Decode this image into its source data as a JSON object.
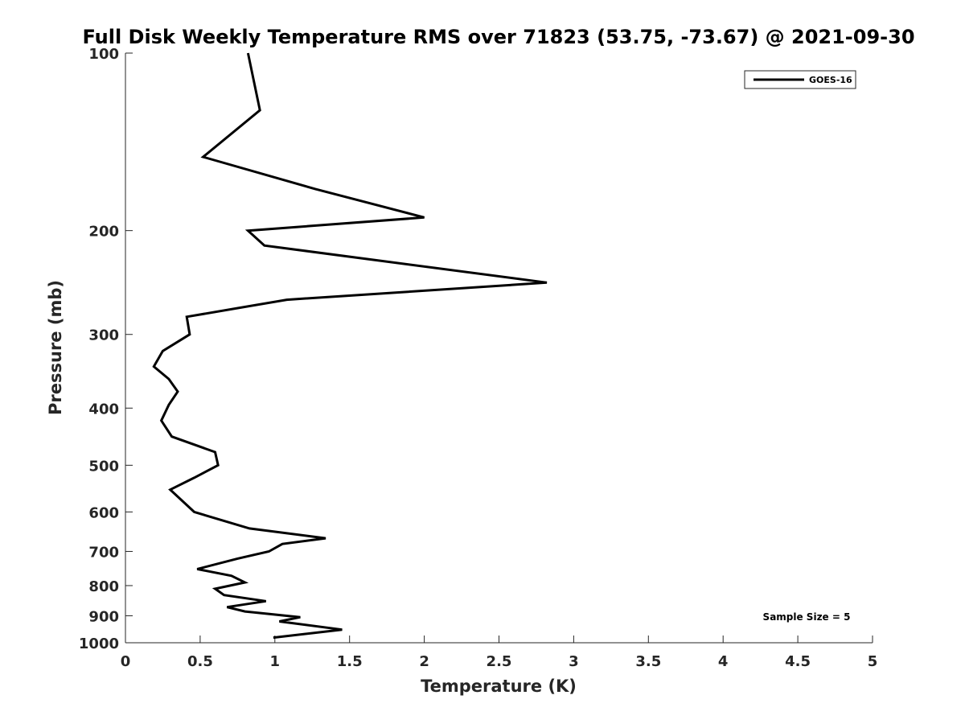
{
  "chart_data": {
    "type": "line",
    "title": "Full Disk Weekly Temperature RMS over 71823 (53.75, -73.67) @ 2021-09-30",
    "xlabel": "Temperature (K)",
    "ylabel": "Pressure (mb)",
    "xlim": [
      0,
      5
    ],
    "ylim": [
      100,
      1000
    ],
    "y_scale": "log",
    "y_reversed": true,
    "grid": false,
    "legend_position": "top-right",
    "x_ticks": [
      "0",
      "0.5",
      "1",
      "1.5",
      "2",
      "2.5",
      "3",
      "3.5",
      "4",
      "4.5",
      "5"
    ],
    "y_ticks": [
      "100",
      "200",
      "300",
      "400",
      "500",
      "600",
      "700",
      "800",
      "900",
      "1000"
    ],
    "series": [
      {
        "name": "GOES-16",
        "color": "#000000",
        "x": [
          0.82,
          0.9,
          0.52,
          1.27,
          2.0,
          0.82,
          0.93,
          2.82,
          1.08,
          0.41,
          0.43,
          0.25,
          0.19,
          0.29,
          0.35,
          0.29,
          0.24,
          0.31,
          0.6,
          0.62,
          0.46,
          0.3,
          0.46,
          0.83,
          1.34,
          1.05,
          0.96,
          0.75,
          0.48,
          0.71,
          0.8,
          0.6,
          0.66,
          0.94,
          0.68,
          0.8,
          1.17,
          1.03,
          1.45,
          0.99
        ],
        "y": [
          100,
          125,
          150,
          170,
          190,
          200,
          212,
          245,
          262,
          280,
          300,
          320,
          340,
          357,
          375,
          395,
          420,
          447,
          475,
          500,
          525,
          550,
          600,
          640,
          665,
          680,
          700,
          720,
          750,
          770,
          790,
          810,
          830,
          850,
          870,
          885,
          905,
          920,
          950,
          980
        ]
      }
    ],
    "annotations": [
      "Sample Size = 5"
    ]
  }
}
